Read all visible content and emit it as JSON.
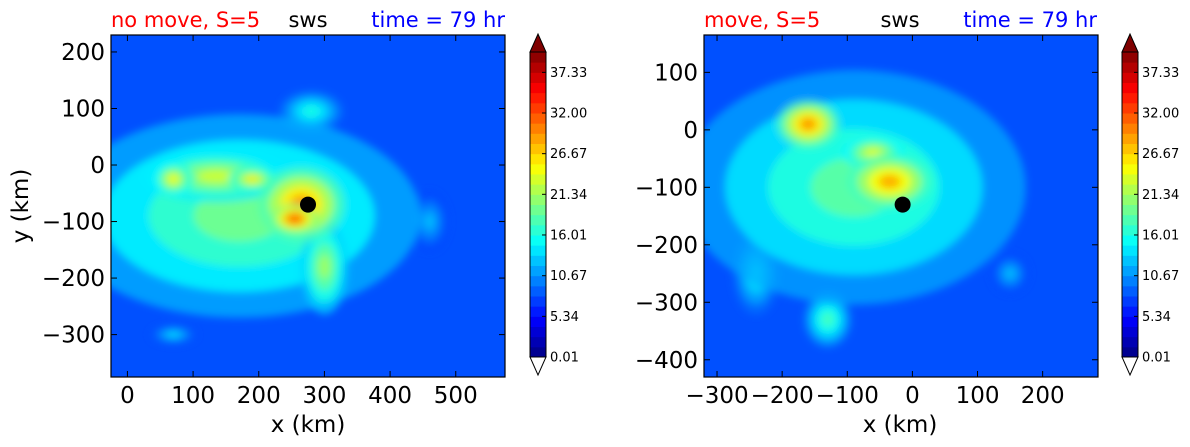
{
  "chart_data": [
    {
      "type": "contour",
      "title_left": "no move, S=5",
      "title_center": "sws",
      "title_right": "time = 79 hr",
      "title_left_color": "#ff0000",
      "title_center_color": "#000000",
      "title_right_color": "#0000ff",
      "xlabel": "x (km)",
      "ylabel": "y (km)",
      "xlim": [
        -25,
        575
      ],
      "ylim": [
        -375,
        230
      ],
      "xticks": [
        "0",
        "100",
        "200",
        "300",
        "400",
        "500"
      ],
      "yticks": [
        "200",
        "100",
        "0",
        "−100",
        "−200",
        "−300"
      ],
      "xtick_values": [
        0,
        100,
        200,
        300,
        400,
        500
      ],
      "ytick_values": [
        200,
        100,
        0,
        -100,
        -200,
        -300
      ],
      "storm_center": {
        "x": 275,
        "y": -70
      },
      "features": [
        {
          "x": 265,
          "y": -70,
          "sx": 55,
          "sy": 55,
          "level": 33
        },
        {
          "x": 255,
          "y": -95,
          "sx": 30,
          "sy": 22,
          "level": 36
        },
        {
          "x": 135,
          "y": -20,
          "sx": 95,
          "sy": 38,
          "level": 26
        },
        {
          "x": 70,
          "y": -25,
          "sx": 25,
          "sy": 25,
          "level": 28
        },
        {
          "x": 190,
          "y": -25,
          "sx": 30,
          "sy": 18,
          "level": 29
        },
        {
          "x": 170,
          "y": -90,
          "sx": 230,
          "sy": 150,
          "level": 22
        },
        {
          "x": 280,
          "y": 95,
          "sx": 40,
          "sy": 30,
          "level": 18
        },
        {
          "x": 300,
          "y": -180,
          "sx": 30,
          "sy": 70,
          "level": 24
        },
        {
          "x": 70,
          "y": -300,
          "sx": 30,
          "sy": 15,
          "level": 15
        },
        {
          "x": 460,
          "y": -100,
          "sx": 25,
          "sy": 45,
          "level": 14
        }
      ]
    },
    {
      "type": "contour",
      "title_left": "move, S=5",
      "title_center": "sws",
      "title_right": "time = 79 hr",
      "title_left_color": "#ff0000",
      "title_center_color": "#000000",
      "title_right_color": "#0000ff",
      "xlabel": "x (km)",
      "ylabel": "",
      "xlim": [
        -320,
        285
      ],
      "ylim": [
        -430,
        165
      ],
      "xticks": [
        "−300",
        "−200",
        "−100",
        "0",
        "100",
        "200"
      ],
      "yticks": [
        "100",
        "0",
        "−100",
        "−200",
        "−300",
        "−400"
      ],
      "xtick_values": [
        -300,
        -200,
        -100,
        0,
        100,
        200
      ],
      "ytick_values": [
        100,
        0,
        -100,
        -200,
        -300,
        -400
      ],
      "storm_center": {
        "x": -15,
        "y": -130
      },
      "features": [
        {
          "x": -160,
          "y": 10,
          "sx": 40,
          "sy": 35,
          "level": 33
        },
        {
          "x": -35,
          "y": -90,
          "sx": 55,
          "sy": 40,
          "level": 32
        },
        {
          "x": -60,
          "y": -40,
          "sx": 40,
          "sy": 25,
          "level": 27
        },
        {
          "x": -90,
          "y": -100,
          "sx": 220,
          "sy": 170,
          "level": 21
        },
        {
          "x": -130,
          "y": -330,
          "sx": 30,
          "sy": 40,
          "level": 20
        },
        {
          "x": 150,
          "y": -250,
          "sx": 25,
          "sy": 30,
          "level": 14
        },
        {
          "x": -240,
          "y": -250,
          "sx": 30,
          "sy": 60,
          "level": 17
        }
      ]
    }
  ],
  "colorbar": {
    "labels": [
      "37.33",
      "32.00",
      "26.67",
      "21.34",
      "16.01",
      "10.67",
      "5.34",
      "0.01"
    ],
    "values": [
      37.33,
      32.0,
      26.67,
      21.34,
      16.01,
      10.67,
      5.34,
      0.01
    ],
    "vmin": 0.01,
    "vmax": 40,
    "levels": 30,
    "colormap": "jet"
  }
}
